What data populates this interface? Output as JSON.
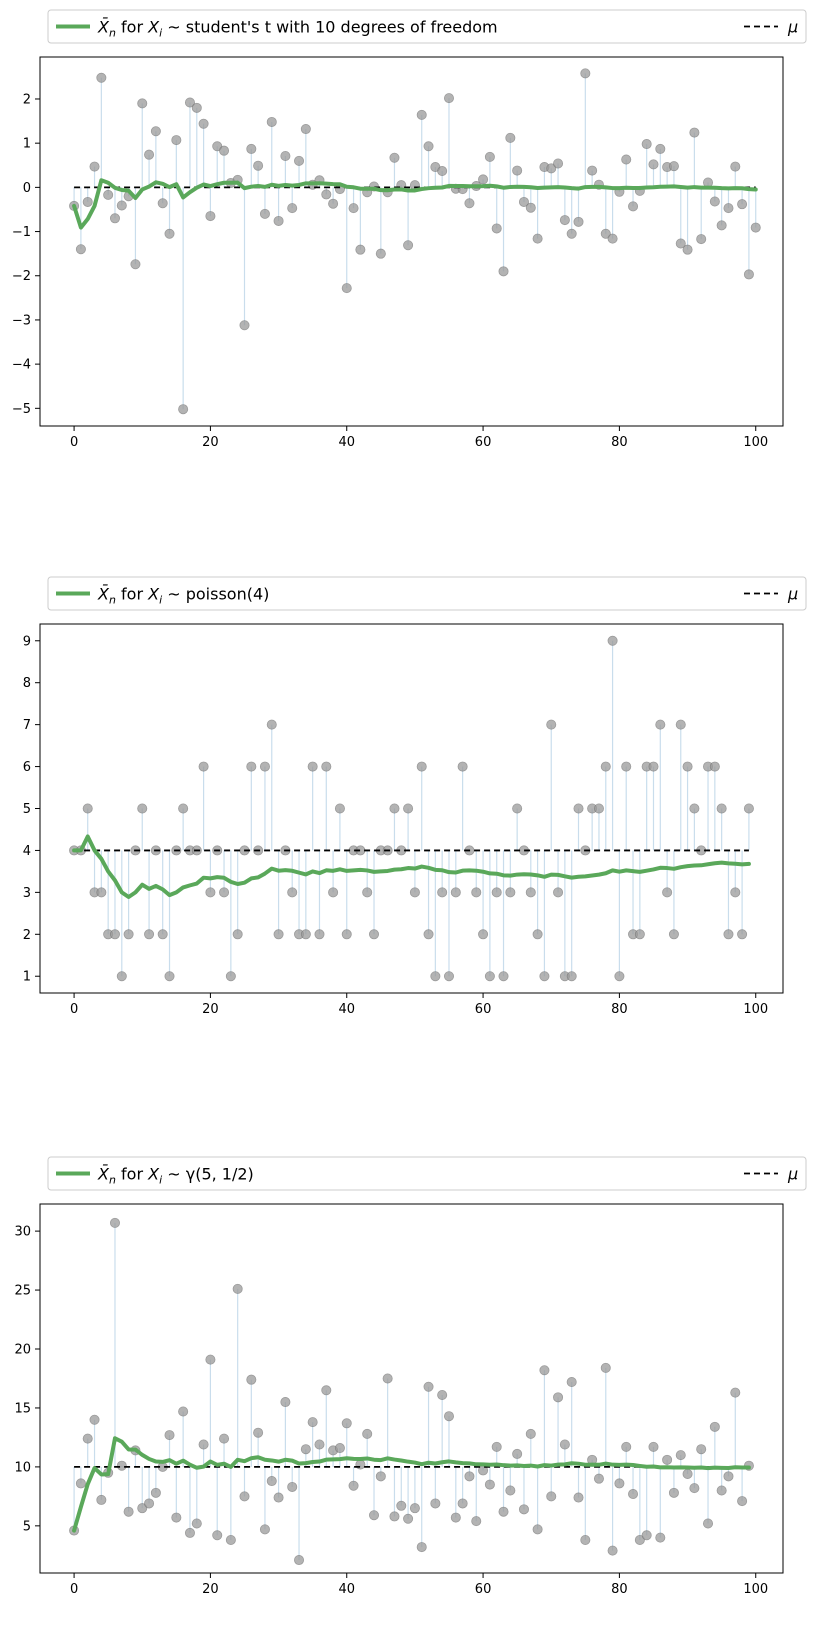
{
  "colors": {
    "running_mean": "#5aa85a",
    "observation": "#9a9a9a",
    "stem": "#a6c8e0",
    "mu": "#000000"
  },
  "chart_data": [
    {
      "type": "scatter",
      "legend": {
        "series_label": "X̄n for Xi ~ student's t with 10 degrees of freedom",
        "mu_label": "μ",
        "placement": "top"
      },
      "xlim": [
        -5,
        104
      ],
      "ylim": [
        -5.4,
        2.95
      ],
      "x_ticks": [
        0,
        20,
        40,
        60,
        80,
        100
      ],
      "y_ticks": [
        -5,
        -4,
        -3,
        -2,
        -1,
        0,
        1,
        2
      ],
      "y_tick_labels": [
        "−5",
        "−4",
        "−3",
        "−2",
        "−1",
        "0",
        "1",
        "2"
      ],
      "mu": 0,
      "values": [
        -0.42,
        -1.4,
        -0.33,
        0.47,
        2.48,
        -0.17,
        -0.7,
        -0.41,
        -0.2,
        -1.74,
        1.9,
        0.74,
        1.27,
        -0.36,
        -1.05,
        1.07,
        -5.02,
        1.92,
        1.8,
        1.44,
        -0.65,
        0.93,
        0.83,
        0.1,
        0.17,
        -3.12,
        0.87,
        0.49,
        -0.6,
        1.48,
        -0.76,
        0.71,
        -0.47,
        0.6,
        1.32,
        0.06,
        0.16,
        -0.16,
        -0.37,
        -0.04,
        -2.28,
        -0.47,
        -1.41,
        -0.11,
        0.02,
        -1.5,
        -0.11,
        0.67,
        0.05,
        -1.31,
        0.05,
        1.64,
        0.93,
        0.46,
        0.37,
        2.02,
        -0.03,
        -0.04,
        -0.36,
        0.03,
        0.18,
        0.69,
        -0.93,
        -1.9,
        1.12,
        0.38,
        -0.33,
        -0.46,
        -1.16,
        0.46,
        0.43,
        0.54,
        -0.74,
        -1.05,
        -0.78,
        2.58,
        0.38,
        0.06,
        -1.05,
        -1.16,
        -0.1,
        0.63,
        -0.43,
        -0.08,
        0.98,
        0.52,
        0.87,
        0.46,
        0.48,
        -1.27,
        -1.41,
        1.24,
        -1.17,
        0.11,
        -0.32,
        -0.86,
        -0.47,
        0.47,
        -0.38,
        -1.97,
        -0.91
      ]
    },
    {
      "type": "scatter",
      "legend": {
        "series_label": "X̄n for Xi ~ poisson(4)",
        "mu_label": "μ",
        "placement": "top"
      },
      "xlim": [
        -5,
        104
      ],
      "ylim": [
        0.6,
        9.4
      ],
      "x_ticks": [
        0,
        20,
        40,
        60,
        80,
        100
      ],
      "y_ticks": [
        1,
        2,
        3,
        4,
        5,
        6,
        7,
        8,
        9
      ],
      "y_tick_labels": [
        "1",
        "2",
        "3",
        "4",
        "5",
        "6",
        "7",
        "8",
        "9"
      ],
      "mu": 4,
      "values": [
        4,
        4,
        5,
        3,
        3,
        2,
        2,
        1,
        2,
        4,
        5,
        2,
        4,
        2,
        1,
        4,
        5,
        4,
        4,
        6,
        3,
        4,
        3,
        1,
        2,
        4,
        6,
        4,
        6,
        7,
        2,
        4,
        3,
        2,
        2,
        6,
        2,
        6,
        3,
        5,
        2,
        4,
        4,
        3,
        2,
        4,
        4,
        5,
        4,
        5,
        3,
        6,
        2,
        1,
        3,
        1,
        3,
        6,
        4,
        3,
        2,
        1,
        3,
        1,
        3,
        5,
        4,
        3,
        2,
        1,
        7,
        3,
        1,
        1,
        5,
        4,
        5,
        5,
        6,
        9,
        1,
        6,
        2,
        2,
        6,
        6,
        7,
        3,
        2,
        7,
        6,
        5,
        4,
        6,
        6,
        5,
        2,
        3,
        2,
        5
      ]
    },
    {
      "type": "scatter",
      "legend": {
        "series_label": "X̄n for Xi ~ γ(5, 1/2)",
        "mu_label": "μ",
        "placement": "top"
      },
      "xlim": [
        -5,
        104
      ],
      "ylim": [
        1.0,
        32.3
      ],
      "x_ticks": [
        0,
        20,
        40,
        60,
        80,
        100
      ],
      "y_ticks": [
        5,
        10,
        15,
        20,
        25,
        30
      ],
      "y_tick_labels": [
        "5",
        "10",
        "15",
        "20",
        "25",
        "30"
      ],
      "mu": 10,
      "values": [
        4.6,
        8.6,
        12.4,
        14,
        7.2,
        9.5,
        30.7,
        10.1,
        6.2,
        11.4,
        6.5,
        6.9,
        7.8,
        10,
        12.7,
        5.7,
        14.7,
        4.4,
        5.2,
        11.9,
        19.1,
        4.2,
        12.4,
        3.8,
        25.1,
        7.5,
        17.4,
        12.9,
        4.7,
        8.8,
        7.4,
        15.5,
        8.3,
        2.1,
        11.5,
        13.8,
        11.9,
        16.5,
        11.4,
        11.6,
        13.7,
        8.4,
        10.2,
        12.8,
        5.9,
        9.2,
        17.5,
        5.8,
        6.7,
        5.6,
        6.5,
        3.2,
        16.8,
        6.9,
        16.1,
        14.3,
        5.7,
        6.9,
        9.2,
        5.4,
        9.7,
        8.5,
        11.7,
        6.2,
        8,
        11.1,
        6.4,
        12.8,
        4.7,
        18.2,
        7.5,
        15.9,
        11.9,
        17.2,
        7.4,
        3.8,
        10.6,
        9,
        18.4,
        2.9,
        8.6,
        11.7,
        7.7,
        3.8,
        4.2,
        11.7,
        4,
        10.6,
        7.8,
        11,
        9.4,
        8.2,
        11.5,
        5.2,
        13.4,
        8,
        9.2,
        16.3,
        7.1,
        10.1
      ]
    }
  ]
}
